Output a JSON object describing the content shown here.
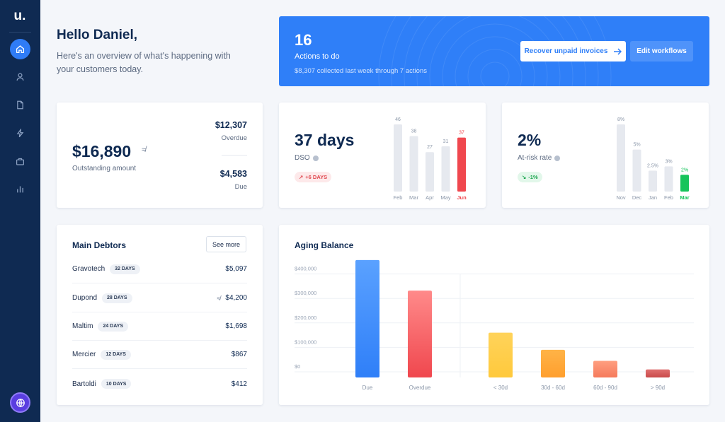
{
  "app": {
    "logo": "u."
  },
  "sidebar": {
    "items": [
      {
        "icon": "home-icon",
        "active": true
      },
      {
        "icon": "user-icon",
        "active": false
      },
      {
        "icon": "document-icon",
        "active": false
      },
      {
        "icon": "lightning-icon",
        "active": false
      },
      {
        "icon": "briefcase-icon",
        "active": false
      },
      {
        "icon": "bar-chart-icon",
        "active": false
      }
    ]
  },
  "greeting": {
    "title": "Hello Daniel,",
    "subtitle": "Here's an overview of what's happening with your customers today."
  },
  "banner": {
    "count": "16",
    "label": "Actions to do",
    "note": "$8,307 collected last week through 7 actions",
    "primary_button": "Recover unpaid invoices",
    "secondary_button": "Edit workflows"
  },
  "outstanding": {
    "amount": "$16,890",
    "approx_symbol": "≉",
    "label": "Outstanding amount",
    "overdue_value": "$12,307",
    "overdue_label": "Overdue",
    "due_value": "$4,583",
    "due_label": "Due"
  },
  "dso": {
    "value": "37 days",
    "label": "DSO",
    "trend": "+6 DAYS",
    "chart_data": {
      "type": "bar",
      "categories": [
        "Feb",
        "Mar",
        "Apr",
        "May",
        "Jun"
      ],
      "values": [
        46,
        38,
        27,
        31,
        37
      ],
      "value_labels": [
        "46",
        "38",
        "27",
        "31",
        "37"
      ],
      "highlight_index": 4,
      "colors": {
        "bar": "#e6e9ef",
        "highlight": "#f0474e"
      }
    }
  },
  "at_risk": {
    "value": "2%",
    "label": "At-risk rate",
    "trend": "-1%",
    "chart_data": {
      "type": "bar",
      "categories": [
        "Nov",
        "Dec",
        "Jan",
        "Feb",
        "Mar"
      ],
      "values": [
        8,
        5,
        2.5,
        3,
        2
      ],
      "value_labels": [
        "8%",
        "5%",
        "2.5%",
        "3%",
        "2%"
      ],
      "highlight_index": 4,
      "colors": {
        "bar": "#e6e9ef",
        "highlight": "#16c45b"
      }
    }
  },
  "debtors": {
    "title": "Main Debtors",
    "see_more": "See more",
    "rows": [
      {
        "name": "Gravotech",
        "days": "32 DAYS",
        "amount": "$5,097",
        "approx": ""
      },
      {
        "name": "Dupond",
        "days": "28 DAYS",
        "amount": "$4,200",
        "approx": "≉"
      },
      {
        "name": "Maltim",
        "days": "24 DAYS",
        "amount": "$1,698",
        "approx": ""
      },
      {
        "name": "Mercier",
        "days": "12 DAYS",
        "amount": "$867",
        "approx": ""
      },
      {
        "name": "Bartoldi",
        "days": "10 DAYS",
        "amount": "$412",
        "approx": ""
      }
    ]
  },
  "aging": {
    "title": "Aging Balance",
    "chart_data": {
      "type": "bar",
      "categories": [
        "Due",
        "Overdue",
        "< 30d",
        "30d - 60d",
        "60d - 90d",
        "> 90d"
      ],
      "values": [
        480000,
        355000,
        183000,
        113000,
        68000,
        33000
      ],
      "ytick_labels": [
        "$0",
        "$100,000",
        "$200,000",
        "$300,000",
        "$400,000"
      ],
      "yticks": [
        0,
        100000,
        200000,
        300000,
        400000
      ],
      "ylim": [
        0,
        500000
      ],
      "grid": true,
      "colors": [
        [
          "#5aa1ff",
          "#2f7ff8"
        ],
        [
          "#ff8a8a",
          "#f0474e"
        ],
        [
          "#ffd35a",
          "#ffc93c"
        ],
        [
          "#ffb347",
          "#ff9f2e"
        ],
        [
          "#ff9f80",
          "#f57a5c"
        ],
        [
          "#e07070",
          "#c94a4a"
        ]
      ]
    }
  }
}
